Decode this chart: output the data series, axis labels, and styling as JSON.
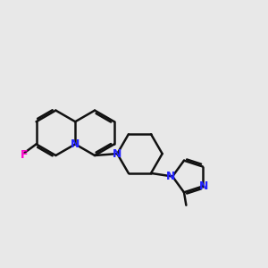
{
  "background_color": "#e8e8e8",
  "bond_color": "#111111",
  "N_color": "#2222ff",
  "F_color": "#ff00cc",
  "lw": 1.8,
  "figsize": [
    3.0,
    3.0
  ],
  "dpi": 100,
  "xlim": [
    -1.0,
    11.5
  ],
  "ylim": [
    2.0,
    9.5
  ]
}
